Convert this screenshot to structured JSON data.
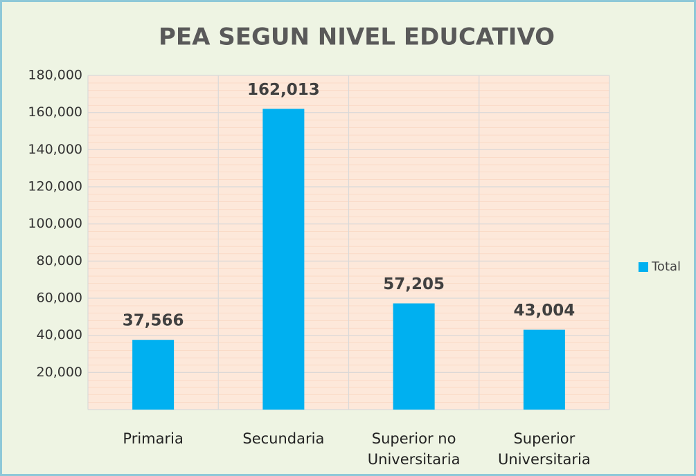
{
  "chart_data": {
    "type": "bar",
    "title": "PEA SEGUN NIVEL EDUCATIVO",
    "categories": [
      "Primaria",
      "Secundaria",
      "Superior no Universitaria",
      "Superior Universitaria"
    ],
    "series": [
      {
        "name": "Total",
        "color": "#00b0f0",
        "values": [
          37566,
          162013,
          57205,
          43004
        ],
        "value_labels": [
          "37,566",
          "162,013",
          "57,205",
          "43,004"
        ]
      }
    ],
    "ylim": [
      0,
      180000
    ],
    "yticks": [
      {
        "value": 20000,
        "label": "20,000"
      },
      {
        "value": 40000,
        "label": "40,000"
      },
      {
        "value": 60000,
        "label": "60,000"
      },
      {
        "value": 80000,
        "label": "80,000"
      },
      {
        "value": 100000,
        "label": "100,000"
      },
      {
        "value": 120000,
        "label": "120,000"
      },
      {
        "value": 140000,
        "label": "140,000"
      },
      {
        "value": 160000,
        "label": "160,000"
      },
      {
        "value": 180000,
        "label": "180,000"
      }
    ],
    "grid": true,
    "legend": "right"
  }
}
